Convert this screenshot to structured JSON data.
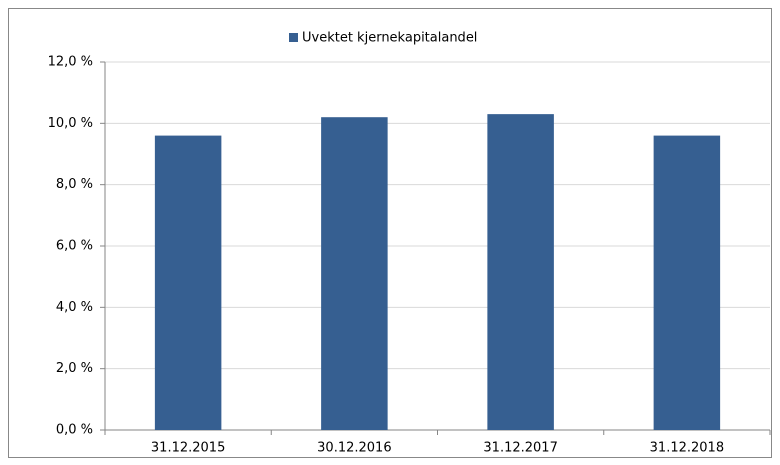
{
  "chart_data": {
    "type": "bar",
    "series": [
      {
        "name": "Uvektet kjernekapitalandel",
        "color": "#365f91",
        "values": [
          9.6,
          10.2,
          10.3,
          9.6
        ]
      }
    ],
    "categories": [
      "31.12.2015",
      "30.12.2016",
      "31.12.2017",
      "31.12.2018"
    ],
    "ylim": [
      0,
      12
    ],
    "yticks": [
      {
        "value": 0,
        "label": "0,0 %"
      },
      {
        "value": 2,
        "label": "2,0 %"
      },
      {
        "value": 4,
        "label": "4,0 %"
      },
      {
        "value": 6,
        "label": "6,0 %"
      },
      {
        "value": 8,
        "label": "8,0 %"
      },
      {
        "value": 10,
        "label": "10,0 %"
      },
      {
        "value": 12,
        "label": "12,0 %"
      }
    ],
    "grid": true,
    "legend": "top"
  }
}
